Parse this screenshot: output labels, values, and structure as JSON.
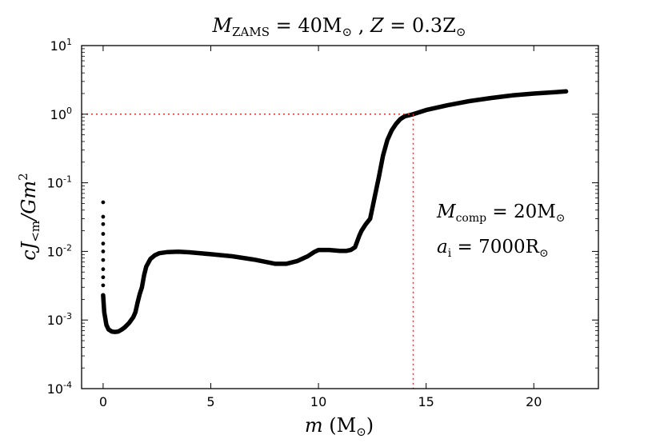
{
  "chart_data": {
    "type": "scatter",
    "title": "M_ZAMS = 40M_⊙ , Z = 0.3Z_⊙",
    "title_parts": {
      "m_sym": "M",
      "m_sub": "ZAMS",
      "m_val": " = 40M",
      "sun": "⊙",
      "sep": " , ",
      "z_sym": "Z",
      "z_val": " = 0.3Z"
    },
    "xlabel": "m (M_⊙)",
    "xlabel_parts": {
      "m": "m",
      "open": " (M",
      "sun": "⊙",
      "close": ")"
    },
    "ylabel": "cJ_<m/Gm^2",
    "ylabel_parts": {
      "main": "cJ",
      "sub": "<m",
      "rest": "/Gm",
      "sup": "2"
    },
    "xlim": [
      -1,
      23
    ],
    "ylim": [
      0.0001,
      10
    ],
    "yscale": "log",
    "xticks": [
      0,
      5,
      10,
      15,
      20
    ],
    "yticks": [
      {
        "value": 0.0001,
        "base": "10",
        "exp": "-4"
      },
      {
        "value": 0.001,
        "base": "10",
        "exp": "-3"
      },
      {
        "value": 0.01,
        "base": "10",
        "exp": "-2"
      },
      {
        "value": 0.1,
        "base": "10",
        "exp": "-1"
      },
      {
        "value": 1,
        "base": "10",
        "exp": "0"
      },
      {
        "value": 10,
        "base": "10",
        "exp": "1"
      }
    ],
    "reference_lines": {
      "horizontal_y": 1.0,
      "vertical_x": 14.4,
      "color": "#e03030"
    },
    "annotations": [
      {
        "label": "M_comp = 20M_⊙",
        "sym": "M",
        "sub": "comp",
        "val": " = 20M",
        "sun": "⊙"
      },
      {
        "label": "a_i = 7000R_⊙",
        "sym": "a",
        "sub": "i",
        "val": " = 7000R",
        "sun": "⊙"
      }
    ],
    "scatter_points": [
      [
        0.0,
        0.052
      ],
      [
        0.0,
        0.032
      ],
      [
        0.0,
        0.025
      ],
      [
        0.0,
        0.018
      ],
      [
        0.0,
        0.013
      ],
      [
        0.0,
        0.01
      ],
      [
        0.0,
        0.0075
      ],
      [
        0.0,
        0.0055
      ],
      [
        0.0,
        0.0042
      ],
      [
        0.0,
        0.0032
      ]
    ],
    "series": [
      {
        "name": "cJ_<m/Gm^2",
        "color": "#000000",
        "x": [
          0.0,
          0.05,
          0.15,
          0.25,
          0.4,
          0.55,
          0.7,
          0.85,
          1.0,
          1.2,
          1.4,
          1.5,
          1.6,
          1.7,
          1.8,
          1.9,
          2.0,
          2.2,
          2.4,
          2.6,
          3.0,
          3.5,
          4.0,
          5.0,
          6.0,
          7.0,
          8.0,
          8.5,
          9.0,
          9.5,
          9.8,
          10.0,
          10.5,
          11.0,
          11.3,
          11.5,
          11.7,
          11.9,
          12.0,
          12.2,
          12.4,
          12.6,
          12.8,
          13.0,
          13.2,
          13.4,
          13.6,
          13.8,
          14.0,
          14.4,
          15.0,
          16.0,
          17.0,
          18.0,
          19.0,
          20.0,
          21.0,
          21.5
        ],
        "y": [
          0.0023,
          0.0013,
          0.00085,
          0.00073,
          0.00068,
          0.00067,
          0.00068,
          0.00072,
          0.00078,
          0.0009,
          0.0011,
          0.0013,
          0.0018,
          0.0024,
          0.003,
          0.0045,
          0.006,
          0.0078,
          0.0088,
          0.0094,
          0.0098,
          0.0099,
          0.0097,
          0.0091,
          0.0085,
          0.0076,
          0.0066,
          0.0066,
          0.0072,
          0.0085,
          0.0098,
          0.0105,
          0.0105,
          0.0102,
          0.0102,
          0.0105,
          0.0115,
          0.017,
          0.02,
          0.025,
          0.03,
          0.06,
          0.12,
          0.25,
          0.42,
          0.58,
          0.72,
          0.85,
          0.93,
          1.0,
          1.15,
          1.35,
          1.55,
          1.72,
          1.88,
          2.0,
          2.1,
          2.15
        ]
      }
    ]
  }
}
